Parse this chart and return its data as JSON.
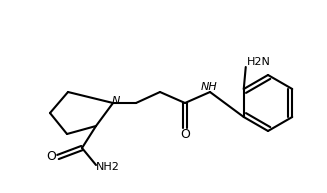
{
  "background_color": "#ffffff",
  "line_color": "#000000",
  "text_color": "#000000",
  "label_N": "N",
  "label_NH": "NH",
  "label_O_left": "O",
  "label_O_right": "O",
  "label_NH2_bottom": "NH2",
  "label_NH2_top": "H2N",
  "figsize": [
    3.27,
    1.93
  ],
  "dpi": 100,
  "line_width": 1.5
}
